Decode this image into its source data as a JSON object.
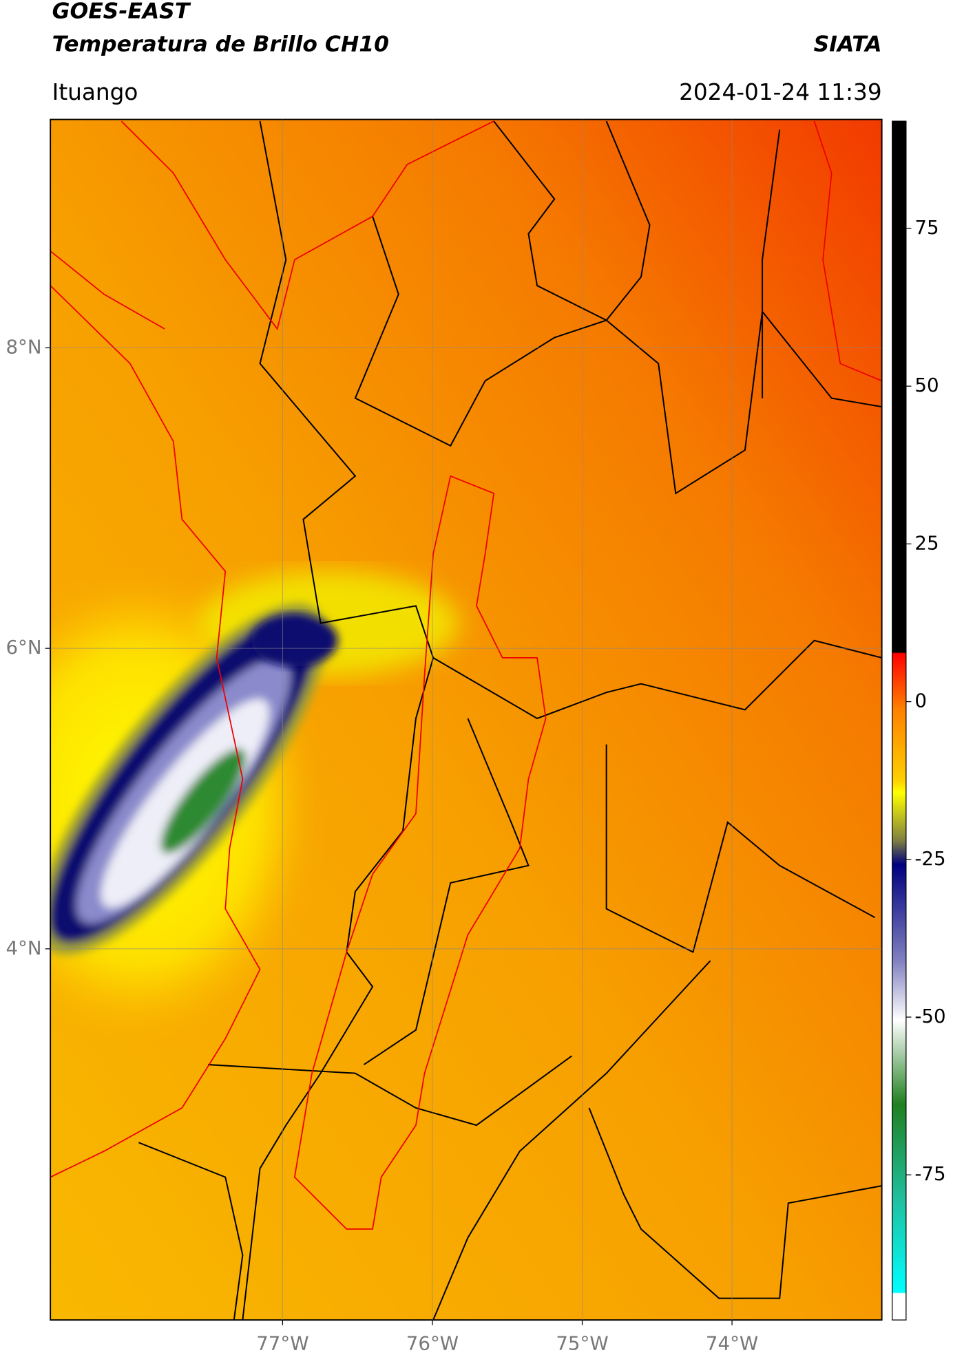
{
  "header": {
    "title": "GOES-EAST",
    "subtitle": "Temperatura de Brillo CH10",
    "source": "SIATA",
    "location": "Ituango",
    "datetime": "2024-01-24 11:39"
  },
  "map": {
    "lat_range": [
      1.53,
      9.52
    ],
    "lon_range": [
      -78.55,
      -73.0
    ],
    "grid": true,
    "lat_ticks": [
      {
        "value": 8,
        "label": "8°N"
      },
      {
        "value": 6,
        "label": "6°N"
      },
      {
        "value": 4,
        "label": "4°N"
      }
    ],
    "lon_ticks": [
      {
        "value": -77,
        "label": "77°W"
      },
      {
        "value": -76,
        "label": "76°W"
      },
      {
        "value": -75,
        "label": "75°W"
      },
      {
        "value": -74,
        "label": "74°W"
      }
    ]
  },
  "colorbar": {
    "range": [
      -98,
      92
    ],
    "ticks": [
      75,
      50,
      25,
      0,
      -25,
      -50,
      -75
    ]
  }
}
